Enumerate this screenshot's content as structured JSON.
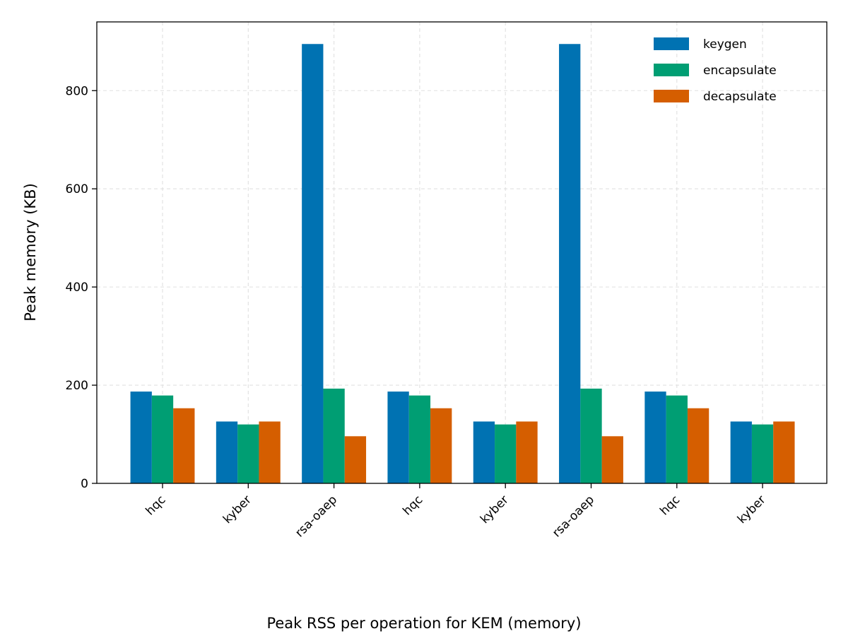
{
  "chart_data": {
    "type": "bar",
    "categories": [
      "hqc",
      "kyber",
      "rsa-oaep",
      "hqc",
      "kyber",
      "rsa-oaep",
      "hqc",
      "kyber"
    ],
    "series": [
      {
        "name": "keygen",
        "color": "#0072b2",
        "values": [
          187,
          126,
          895,
          187,
          126,
          895,
          187,
          126
        ]
      },
      {
        "name": "encapsulate",
        "color": "#009e73",
        "values": [
          179,
          120,
          193,
          179,
          120,
          193,
          179,
          120
        ]
      },
      {
        "name": "decapsulate",
        "color": "#d55e00",
        "values": [
          153,
          126,
          96,
          153,
          126,
          96,
          153,
          126
        ]
      }
    ],
    "ylabel": "Peak memory (KB)",
    "xlabel": "",
    "caption": "Peak RSS per operation for KEM (memory)",
    "ylim": [
      0,
      940
    ],
    "yticks": [
      0,
      200,
      400,
      600,
      800
    ],
    "grid": true,
    "legend_position": "top-right"
  }
}
